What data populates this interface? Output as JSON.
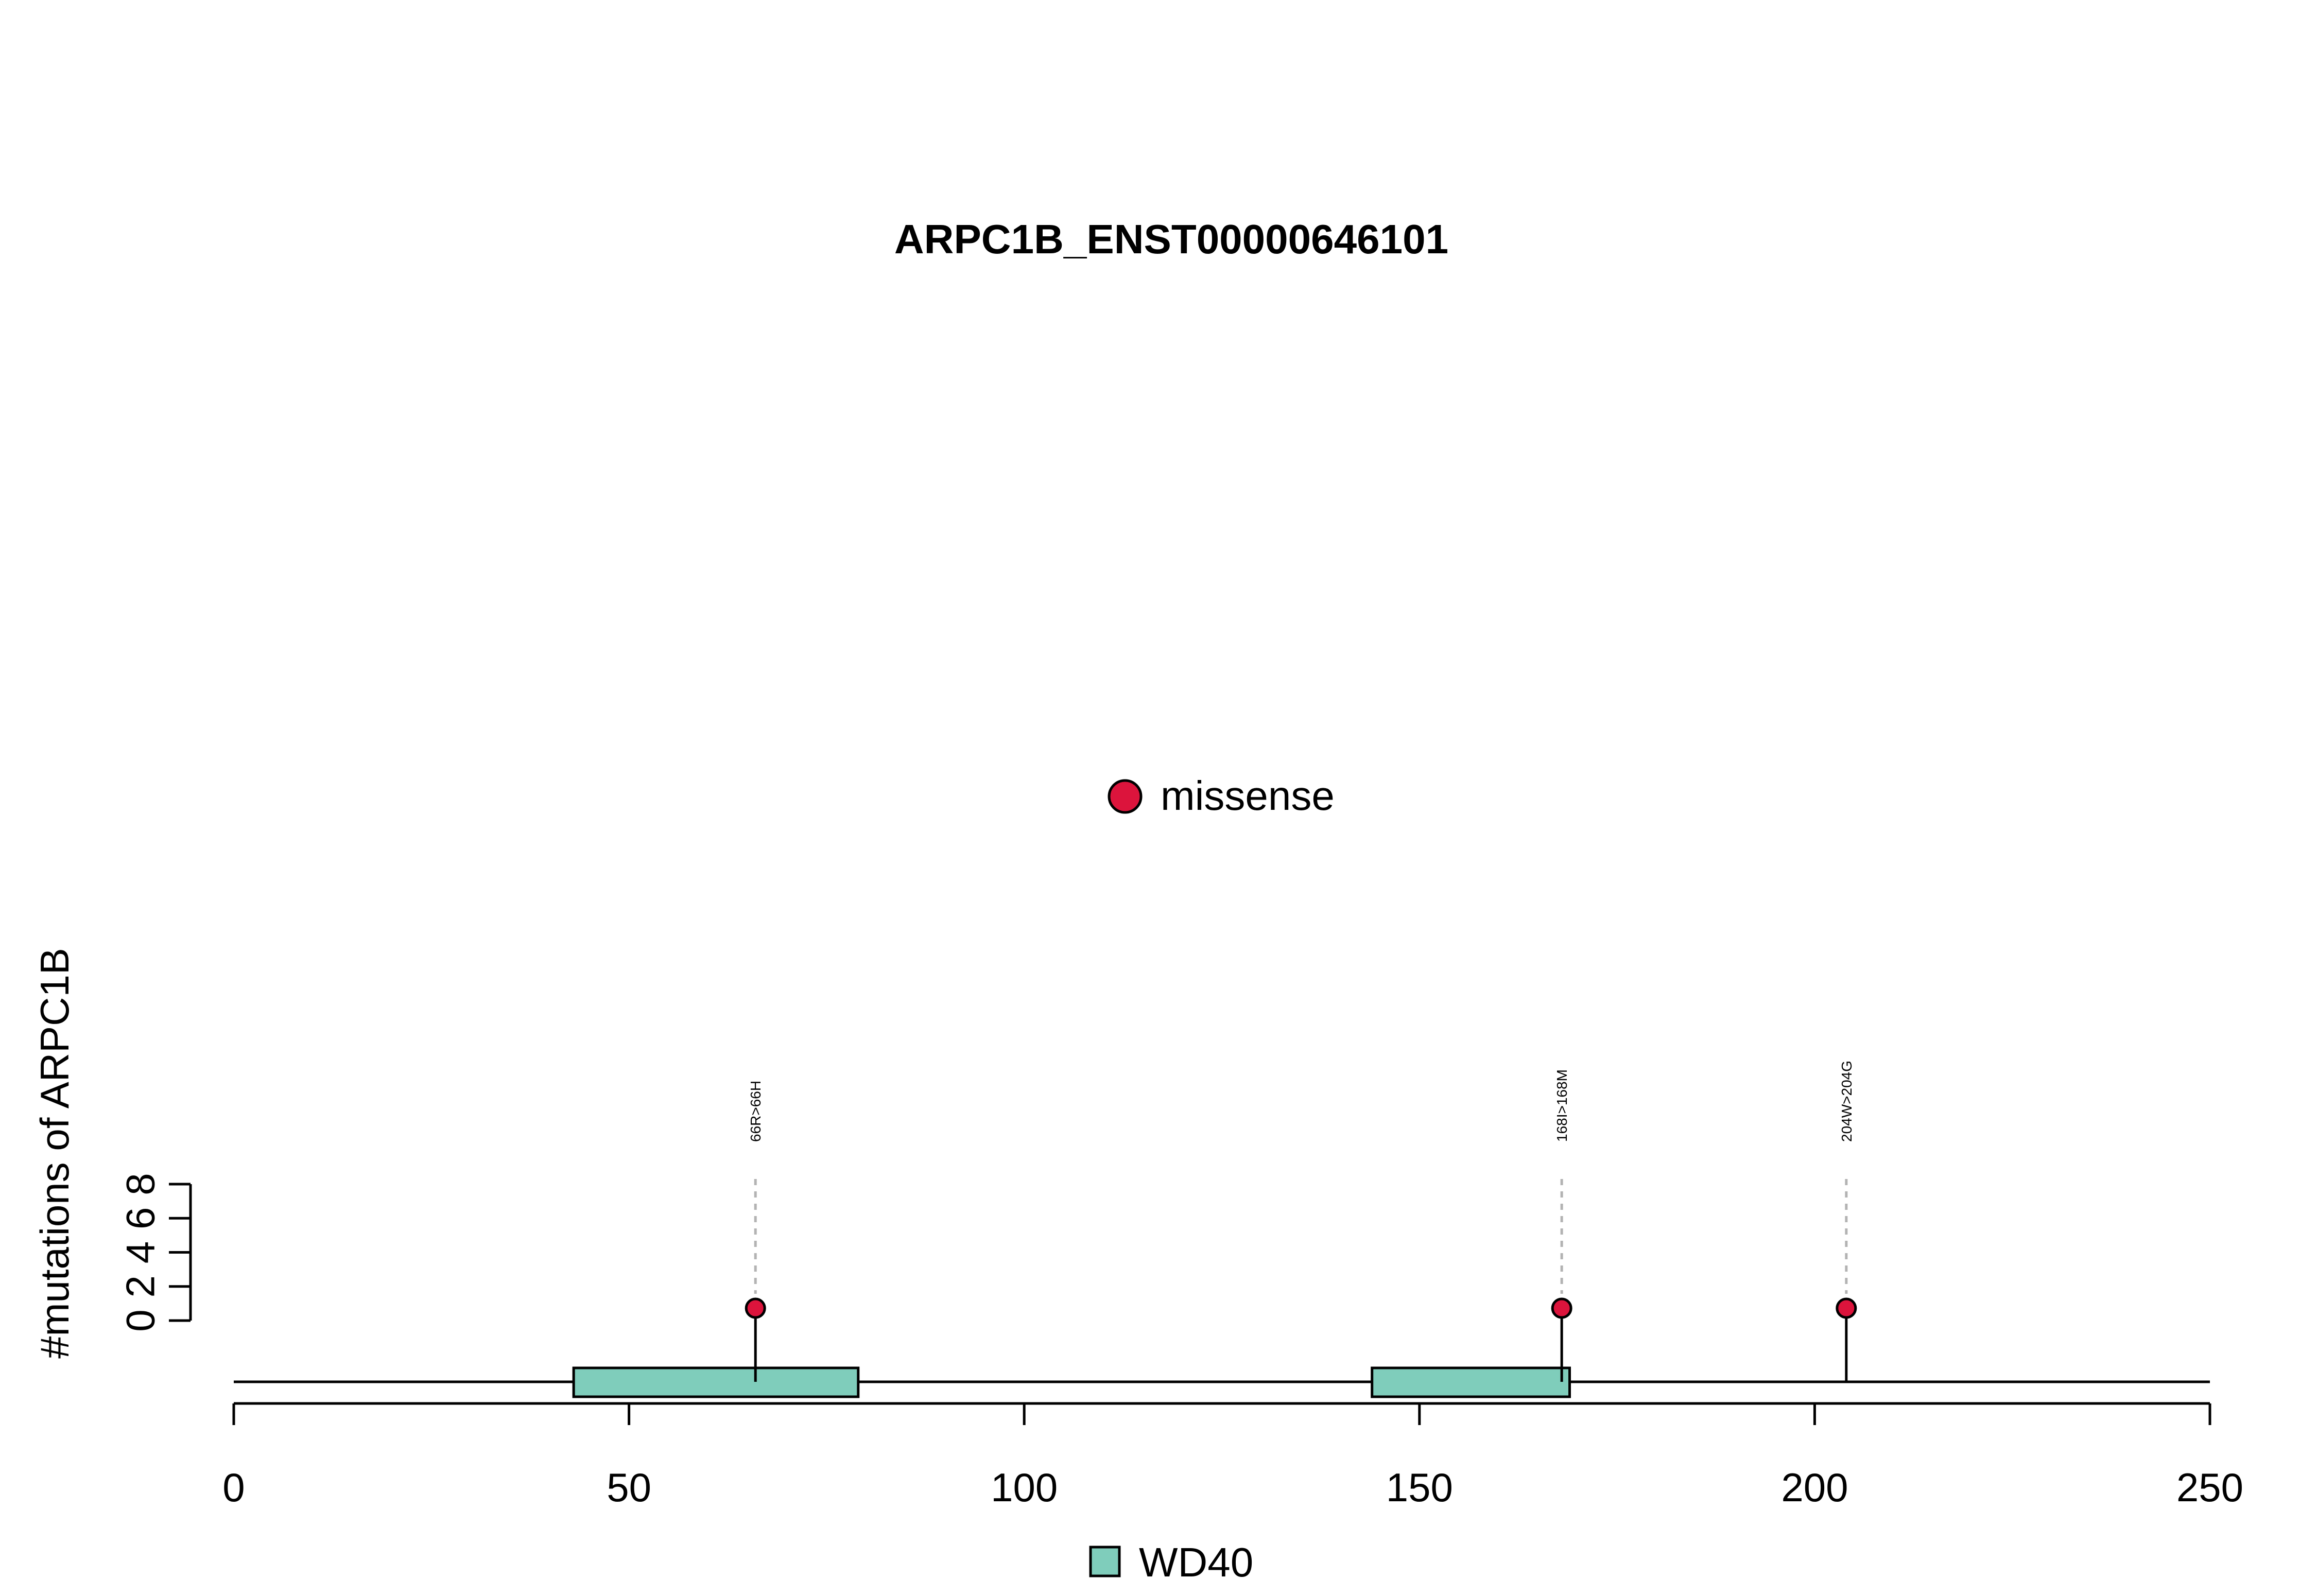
{
  "chart_data": {
    "type": "lollipop",
    "title": "ARPC1B_ENST00000646101",
    "ylabel": "#mutations of ARPC1B",
    "xlabel": "",
    "xlim": [
      0,
      250
    ],
    "x_ticks": [
      0,
      50,
      100,
      150,
      200,
      250
    ],
    "y_ticks": [
      0,
      2,
      4,
      6,
      8
    ],
    "ylim": [
      0,
      8
    ],
    "legend_top": {
      "label": "missense",
      "color": "#DC143C"
    },
    "legend_bottom": {
      "label": "WD40",
      "color": "#7FCDBB"
    },
    "domains": [
      {
        "name": "WD40",
        "start": 43,
        "end": 79
      },
      {
        "name": "WD40",
        "start": 144,
        "end": 169
      }
    ],
    "mutations": [
      {
        "position": 66,
        "label": "66R>66H",
        "type": "missense",
        "count": 1
      },
      {
        "position": 168,
        "label": "168I>168M",
        "type": "missense",
        "count": 1
      },
      {
        "position": 204,
        "label": "204W>204G",
        "type": "missense",
        "count": 1
      }
    ]
  }
}
